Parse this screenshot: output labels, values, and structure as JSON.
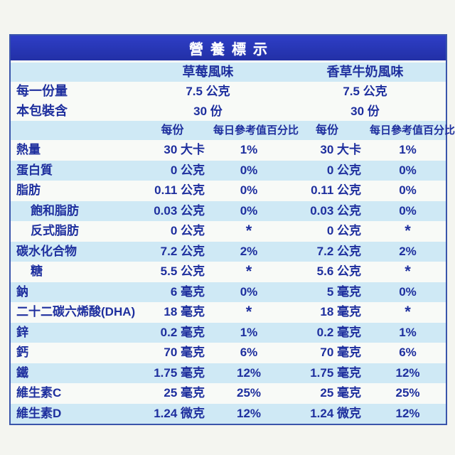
{
  "colors": {
    "page_bg": "#f4f5f0",
    "title_bar_blue": "#2736bc",
    "title_text": "#ffffff",
    "zebra_light_blue": "#cfe9f5",
    "zebra_white": "#f8faf7",
    "text_navy": "#1e2f9e",
    "border_blue": "#3a55ab"
  },
  "table": {
    "title": "營養標示",
    "flavor_columns": [
      "草莓風味",
      "香草牛奶風味"
    ],
    "serving_rows": [
      {
        "label": "每一份量",
        "values": [
          "7.5 公克",
          "7.5 公克"
        ]
      },
      {
        "label": "本包裝含",
        "values": [
          "30 份",
          "30 份"
        ]
      }
    ],
    "column_headers": {
      "per_serving": "每份",
      "daily_value_pct": "每日參考值百分比"
    },
    "nutrients": [
      {
        "label": "熱量",
        "indent": false,
        "values": [
          "30 大卡",
          "1%",
          "30 大卡",
          "1%"
        ]
      },
      {
        "label": "蛋白質",
        "indent": false,
        "values": [
          "0 公克",
          "0%",
          "0 公克",
          "0%"
        ]
      },
      {
        "label": "脂肪",
        "indent": false,
        "values": [
          "0.11 公克",
          "0%",
          "0.11 公克",
          "0%"
        ]
      },
      {
        "label": "飽和脂肪",
        "indent": true,
        "values": [
          "0.03 公克",
          "0%",
          "0.03 公克",
          "0%"
        ]
      },
      {
        "label": "反式脂肪",
        "indent": true,
        "values": [
          "0 公克",
          "*",
          "0 公克",
          "*"
        ]
      },
      {
        "label": "碳水化合物",
        "indent": false,
        "values": [
          "7.2 公克",
          "2%",
          "7.2 公克",
          "2%"
        ]
      },
      {
        "label": "糖",
        "indent": true,
        "values": [
          "5.5 公克",
          "*",
          "5.6 公克",
          "*"
        ]
      },
      {
        "label": "鈉",
        "indent": false,
        "values": [
          "6 毫克",
          "0%",
          "5 毫克",
          "0%"
        ]
      },
      {
        "label": "二十二碳六烯酸(DHA)",
        "indent": false,
        "values": [
          "18 毫克",
          "*",
          "18 毫克",
          "*"
        ]
      },
      {
        "label": "鋅",
        "indent": false,
        "values": [
          "0.2 毫克",
          "1%",
          "0.2 毫克",
          "1%"
        ]
      },
      {
        "label": "鈣",
        "indent": false,
        "values": [
          "70 毫克",
          "6%",
          "70 毫克",
          "6%"
        ]
      },
      {
        "label": "鐵",
        "indent": false,
        "values": [
          "1.75 毫克",
          "12%",
          "1.75 毫克",
          "12%"
        ]
      },
      {
        "label": "維生素C",
        "indent": false,
        "values": [
          "25 毫克",
          "25%",
          "25 毫克",
          "25%"
        ]
      },
      {
        "label": "維生素D",
        "indent": false,
        "values": [
          "1.24 微克",
          "12%",
          "1.24 微克",
          "12%"
        ]
      }
    ]
  }
}
